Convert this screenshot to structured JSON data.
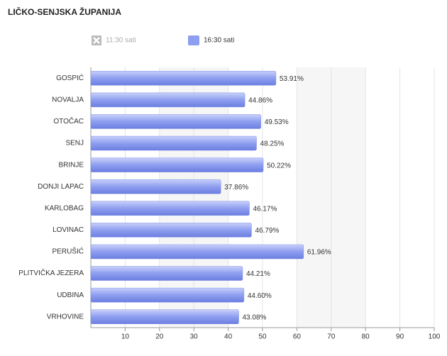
{
  "chart_data": {
    "type": "bar",
    "orientation": "horizontal",
    "title": "LIČKO-SENJSKA ŽUPANIJA",
    "categories": [
      "GOSPIĆ",
      "NOVALJA",
      "OTOČAC",
      "SENJ",
      "BRINJE",
      "DONJI LAPAC",
      "KARLOBAG",
      "LOVINAC",
      "PERUŠIĆ",
      "PLITVIČKA JEZERA",
      "UDBINA",
      "VRHOVINE"
    ],
    "hidden_series": [
      "11:30 sati"
    ],
    "series": [
      {
        "name": "16:30 sati",
        "color": "#8e9ef0",
        "values": [
          53.91,
          44.86,
          49.53,
          48.25,
          50.22,
          37.86,
          46.17,
          46.79,
          61.96,
          44.21,
          44.6,
          43.08
        ],
        "value_labels": [
          "53.91%",
          "44.86%",
          "49.53%",
          "48.25%",
          "50.22%",
          "37.86%",
          "46.17%",
          "46.79%",
          "61.96%",
          "44.21%",
          "44.60%",
          "43.08%"
        ]
      }
    ],
    "xlim": [
      0,
      100
    ],
    "xticks": [
      10,
      20,
      30,
      40,
      50,
      60,
      70,
      80,
      90,
      100
    ],
    "grid": true
  }
}
